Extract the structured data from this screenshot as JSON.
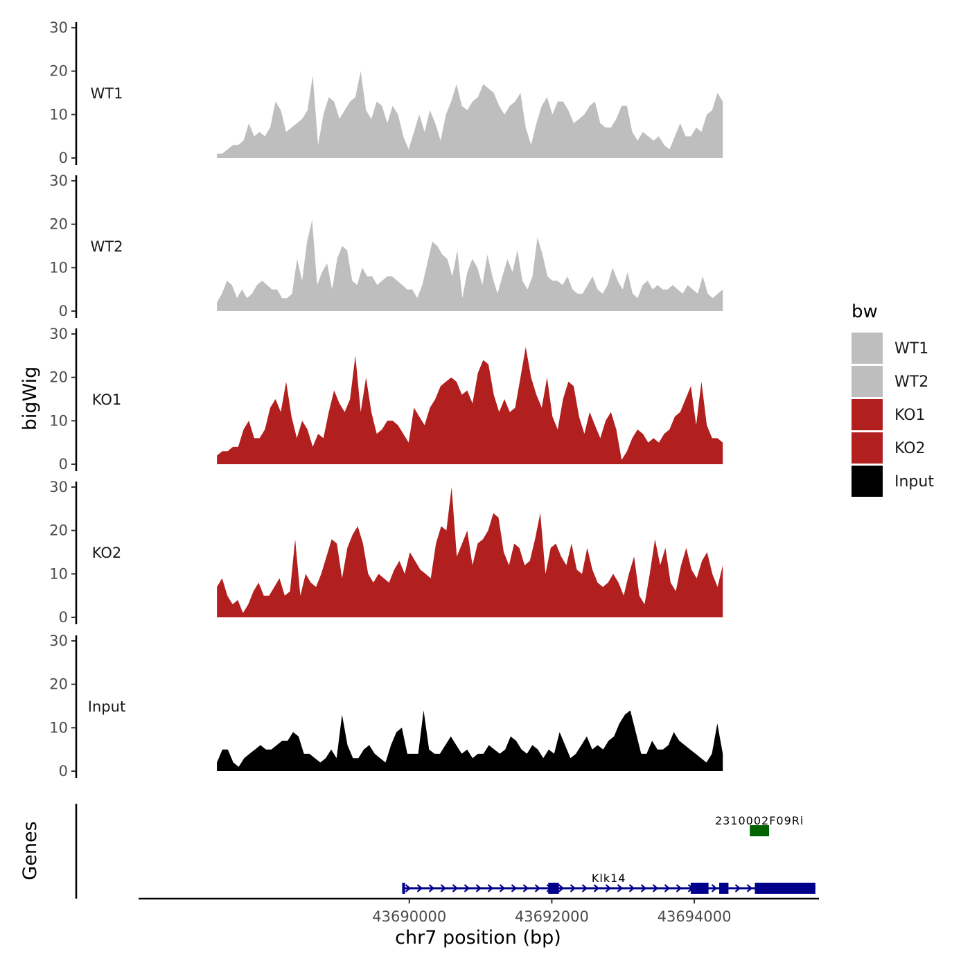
{
  "chart_data": {
    "type": "area",
    "title": "",
    "chromosome": "chr7",
    "xlabel": "chr7 position (bp)",
    "ylabel": "bigWig",
    "genes_label": "Genes",
    "xlim": [
      43686200,
      43695750
    ],
    "x_ticks": [
      43690000,
      43692000,
      43694000
    ],
    "x_tick_labels": [
      "43690000",
      "43692000",
      "43694000"
    ],
    "ylim": [
      0,
      30
    ],
    "y_ticks": [
      0,
      10,
      20,
      30
    ],
    "y_tick_labels": [
      "0",
      "10",
      "20",
      "30"
    ],
    "data_range": [
      43687300,
      43694400
    ],
    "legend": {
      "title": "bw",
      "position": "right",
      "entries": [
        {
          "label": "WT1",
          "color": "#bebebe"
        },
        {
          "label": "WT2",
          "color": "#bebebe"
        },
        {
          "label": "KO1",
          "color": "#b21f1f"
        },
        {
          "label": "KO2",
          "color": "#b21f1f"
        },
        {
          "label": "Input",
          "color": "#000000"
        }
      ]
    },
    "series": [
      {
        "name": "WT1",
        "color": "#bebebe",
        "start": 43687300,
        "end": 43694400,
        "values": [
          1,
          1,
          2,
          3,
          3,
          4,
          8,
          5,
          6,
          5,
          7,
          13,
          11,
          6,
          7,
          8,
          9,
          11,
          19,
          3,
          10,
          14,
          13,
          9,
          11,
          13,
          14,
          20,
          11,
          9,
          13,
          12,
          8,
          12,
          10,
          5,
          2,
          6,
          10,
          6,
          11,
          8,
          4,
          10,
          13,
          17,
          12,
          11,
          13,
          14,
          17,
          16,
          15,
          12,
          10,
          12,
          13,
          15,
          7,
          3,
          8,
          12,
          14,
          10,
          13,
          13,
          11,
          8,
          9,
          10,
          12,
          13,
          8,
          7,
          7,
          9,
          12,
          12,
          6,
          4,
          6,
          5,
          4,
          5,
          3,
          2,
          5,
          8,
          5,
          5,
          7,
          6,
          10,
          11,
          15,
          13
        ]
      },
      {
        "name": "WT2",
        "color": "#bebebe",
        "start": 43687300,
        "end": 43694400,
        "values": [
          2,
          4,
          7,
          6,
          3,
          5,
          3,
          4,
          6,
          7,
          6,
          5,
          5,
          3,
          3,
          4,
          12,
          7,
          16,
          21,
          6,
          9,
          11,
          5,
          12,
          15,
          14,
          7,
          6,
          10,
          8,
          8,
          6,
          7,
          8,
          8,
          7,
          6,
          5,
          5,
          3,
          6,
          11,
          16,
          15,
          13,
          12,
          8,
          14,
          3,
          9,
          12,
          10,
          6,
          13,
          8,
          4,
          8,
          12,
          9,
          14,
          7,
          5,
          8,
          17,
          13,
          8,
          7,
          7,
          6,
          8,
          5,
          4,
          4,
          6,
          8,
          5,
          4,
          6,
          10,
          7,
          5,
          9,
          4,
          3,
          6,
          7,
          5,
          6,
          5,
          5,
          6,
          5,
          4,
          6,
          5,
          4,
          8,
          4,
          3,
          4,
          5
        ]
      },
      {
        "name": "KO1",
        "color": "#b21f1f",
        "start": 43687300,
        "end": 43694400,
        "values": [
          2,
          3,
          3,
          4,
          4,
          8,
          10,
          6,
          6,
          8,
          13,
          15,
          12,
          19,
          11,
          6,
          10,
          8,
          4,
          7,
          6,
          12,
          17,
          14,
          12,
          15,
          25,
          12,
          20,
          12,
          7,
          8,
          10,
          10,
          9,
          7,
          5,
          13,
          11,
          9,
          13,
          15,
          18,
          19,
          20,
          19,
          16,
          17,
          14,
          21,
          24,
          23,
          16,
          12,
          15,
          12,
          13,
          20,
          27,
          20,
          16,
          13,
          20,
          11,
          8,
          15,
          19,
          18,
          11,
          7,
          12,
          9,
          6,
          10,
          12,
          8,
          1,
          3,
          6,
          8,
          7,
          5,
          6,
          5,
          7,
          8,
          11,
          12,
          15,
          18,
          9,
          19,
          9,
          6,
          6,
          5
        ]
      },
      {
        "name": "KO2",
        "color": "#b21f1f",
        "start": 43687300,
        "end": 43694400,
        "values": [
          7,
          9,
          5,
          3,
          4,
          1,
          3,
          6,
          8,
          5,
          5,
          7,
          9,
          5,
          6,
          18,
          5,
          10,
          8,
          7,
          10,
          14,
          18,
          17,
          9,
          16,
          19,
          21,
          17,
          10,
          8,
          10,
          9,
          8,
          11,
          13,
          10,
          15,
          13,
          11,
          10,
          9,
          17,
          21,
          20,
          30,
          14,
          17,
          20,
          12,
          17,
          18,
          20,
          24,
          23,
          15,
          12,
          17,
          16,
          12,
          13,
          18,
          24,
          10,
          16,
          17,
          14,
          12,
          17,
          11,
          10,
          16,
          11,
          8,
          7,
          8,
          10,
          8,
          5,
          10,
          14,
          5,
          3,
          10,
          18,
          12,
          16,
          8,
          6,
          12,
          16,
          11,
          9,
          13,
          15,
          10,
          7,
          12
        ]
      },
      {
        "name": "Input",
        "color": "#000000",
        "start": 43687300,
        "end": 43694400,
        "values": [
          2,
          5,
          5,
          2,
          1,
          3,
          4,
          5,
          6,
          5,
          5,
          6,
          7,
          7,
          9,
          8,
          4,
          4,
          3,
          2,
          3,
          5,
          3,
          13,
          6,
          3,
          3,
          5,
          6,
          4,
          3,
          2,
          6,
          9,
          10,
          4,
          4,
          4,
          14,
          5,
          4,
          4,
          6,
          8,
          6,
          4,
          5,
          3,
          4,
          4,
          6,
          5,
          4,
          5,
          8,
          7,
          5,
          4,
          6,
          5,
          3,
          5,
          4,
          9,
          6,
          3,
          4,
          6,
          8,
          5,
          6,
          5,
          7,
          8,
          11,
          13,
          14,
          9,
          4,
          4,
          7,
          5,
          5,
          6,
          9,
          7,
          6,
          5,
          4,
          3,
          2,
          4,
          11,
          4
        ]
      }
    ],
    "genes": [
      {
        "name": "Klk14",
        "color": "#00008b",
        "strand": "+",
        "start": 43689900,
        "end": 43695700,
        "exons": [
          [
            43689900,
            43689940
          ],
          [
            43691950,
            43692100
          ],
          [
            43693950,
            43694200
          ],
          [
            43694350,
            43694480
          ],
          [
            43694850,
            43695700
          ]
        ]
      },
      {
        "name": "2310002F09Ri",
        "color": "#006400",
        "strand": "-",
        "start": 43694780,
        "end": 43695050,
        "exons": [
          [
            43694780,
            43695050
          ]
        ]
      }
    ]
  }
}
